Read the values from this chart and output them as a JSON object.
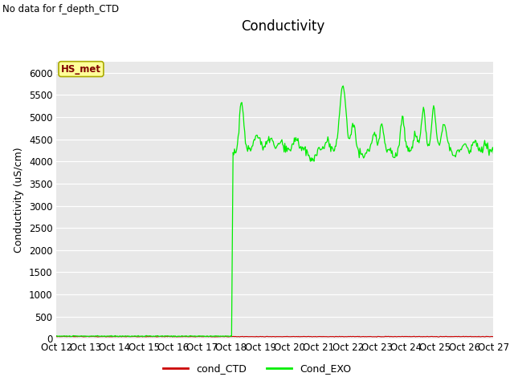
{
  "title": "Conductivity",
  "ylabel": "Conductivity (uS/cm)",
  "no_data_text": "No data for f_depth_CTD",
  "legend_label_text": "HS_met",
  "legend_line1_label": "cond_CTD",
  "legend_line2_label": "Cond_EXO",
  "legend_line1_color": "#cc0000",
  "legend_line2_color": "#00ee00",
  "background_color": "#e8e8e8",
  "ylim": [
    0,
    6250
  ],
  "yticks": [
    0,
    500,
    1000,
    1500,
    2000,
    2500,
    3000,
    3500,
    4000,
    4500,
    5000,
    5500,
    6000
  ],
  "xtick_labels": [
    "Oct 12",
    "Oct 13",
    "Oct 14",
    "Oct 15",
    "Oct 16",
    "Oct 17",
    "Oct 18",
    "Oct 19",
    "Oct 20",
    "Oct 21",
    "Oct 22",
    "Oct 23",
    "Oct 24",
    "Oct 25",
    "Oct 26",
    "Oct 27"
  ],
  "title_fontsize": 12,
  "axis_fontsize": 9,
  "tick_fontsize": 8.5,
  "figwidth": 6.4,
  "figheight": 4.8,
  "dpi": 100
}
